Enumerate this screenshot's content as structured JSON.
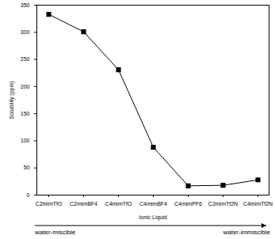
{
  "chart_data": {
    "type": "line",
    "x_label": "Ionic Liquid",
    "y_label": "Solubility (ppm)",
    "categories": [
      "C2mimTfO",
      "C2mimBF4",
      "C4mimTfO",
      "C4mimBF4",
      "C4mimPF6",
      "C2mimTf2N",
      "C4mimTf2N"
    ],
    "values": [
      333,
      301,
      231,
      88,
      17,
      18,
      28
    ],
    "color": "#000000",
    "marker": "square",
    "ylim": [
      0,
      350
    ],
    "yticks": [
      0,
      50,
      100,
      150,
      200,
      250,
      300,
      350
    ],
    "annotations": [
      "water-miscible",
      "water-immiscible"
    ]
  }
}
